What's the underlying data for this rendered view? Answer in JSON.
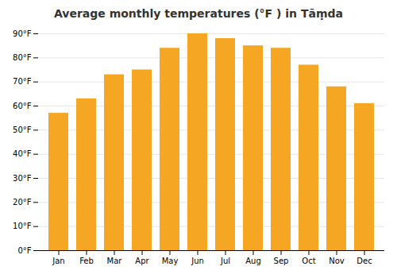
{
  "chart_data": {
    "type": "bar",
    "title": "Average monthly temperatures (°F ) in Tāṃda",
    "categories": [
      "Jan",
      "Feb",
      "Mar",
      "Apr",
      "May",
      "Jun",
      "Jul",
      "Aug",
      "Sep",
      "Oct",
      "Nov",
      "Dec"
    ],
    "values": [
      57,
      63,
      73,
      75,
      84,
      90,
      88,
      85,
      84,
      77,
      68,
      61
    ],
    "color": "#F5A623",
    "ylim": [
      0,
      90
    ],
    "yticks": [
      {
        "value": 0,
        "label": "0°F"
      },
      {
        "value": 10,
        "label": "10°F"
      },
      {
        "value": 20,
        "label": "20°F"
      },
      {
        "value": 30,
        "label": "30°F"
      },
      {
        "value": 40,
        "label": "40°F"
      },
      {
        "value": 50,
        "label": "50°F"
      },
      {
        "value": 60,
        "label": "60°F"
      },
      {
        "value": 70,
        "label": "70°F"
      },
      {
        "value": 80,
        "label": "80°F"
      },
      {
        "value": 90,
        "label": "90°F"
      }
    ],
    "grid": true
  }
}
